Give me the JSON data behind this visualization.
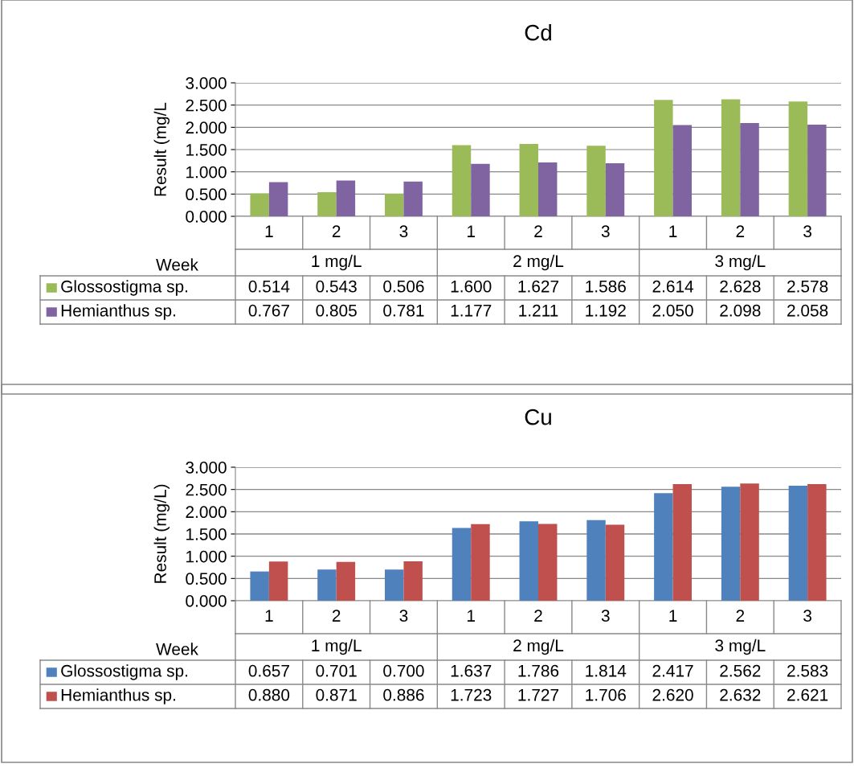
{
  "chart_data": [
    {
      "type": "bar",
      "title": "Cd",
      "ylabel": "Result (mg/L",
      "xlabel": "Week",
      "categories": [
        "1",
        "2",
        "3",
        "1",
        "2",
        "3",
        "1",
        "2",
        "3"
      ],
      "annotations": [
        "1 mg/L",
        "2 mg/L",
        "3 mg/L"
      ],
      "series": [
        {
          "name": "Glossostigma sp.",
          "color": "#9bbb59",
          "values": [
            0.514,
            0.543,
            0.506,
            1.6,
            1.627,
            1.586,
            2.614,
            2.628,
            2.578
          ],
          "value_labels": [
            "0.514",
            "0.543",
            "0.506",
            "1.600",
            "1.627",
            "1.586",
            "2.614",
            "2.628",
            "2.578"
          ]
        },
        {
          "name": "Hemianthus sp.",
          "color": "#8064a2",
          "values": [
            0.767,
            0.805,
            0.781,
            1.177,
            1.211,
            1.192,
            2.05,
            2.098,
            2.058
          ],
          "value_labels": [
            "0.767",
            "0.805",
            "0.781",
            "1.177",
            "1.211",
            "1.192",
            "2.050",
            "2.098",
            "2.058"
          ]
        }
      ],
      "ylim": [
        0,
        3
      ],
      "yticks": [
        {
          "value": 0,
          "label": "0.000"
        },
        {
          "value": 0.5,
          "label": "0.500"
        },
        {
          "value": 1,
          "label": "1.000"
        },
        {
          "value": 1.5,
          "label": "1.500"
        },
        {
          "value": 2,
          "label": "2.000"
        },
        {
          "value": 2.5,
          "label": "2.500"
        },
        {
          "value": 3,
          "label": "3.000"
        }
      ],
      "grid": "y",
      "legend": "bottom left"
    },
    {
      "type": "bar",
      "title": "Cu",
      "ylabel": "Result (mg/L)",
      "xlabel": "Week",
      "categories": [
        "1",
        "2",
        "3",
        "1",
        "2",
        "3",
        "1",
        "2",
        "3"
      ],
      "annotations": [
        "1 mg/L",
        "2 mg/L",
        "3 mg/L"
      ],
      "series": [
        {
          "name": "Glossostigma sp.",
          "color": "#4f81bd",
          "values": [
            0.657,
            0.701,
            0.7,
            1.637,
            1.786,
            1.814,
            2.417,
            2.562,
            2.583
          ],
          "value_labels": [
            "0.657",
            "0.701",
            "0.700",
            "1.637",
            "1.786",
            "1.814",
            "2.417",
            "2.562",
            "2.583"
          ]
        },
        {
          "name": "Hemianthus sp.",
          "color": "#c0504d",
          "values": [
            0.88,
            0.871,
            0.886,
            1.723,
            1.727,
            1.706,
            2.62,
            2.632,
            2.621
          ],
          "value_labels": [
            "0.880",
            "0.871",
            "0.886",
            "1.723",
            "1.727",
            "1.706",
            "2.620",
            "2.632",
            "2.621"
          ]
        }
      ],
      "ylim": [
        0,
        3
      ],
      "yticks": [
        {
          "value": 0,
          "label": "0.000"
        },
        {
          "value": 0.5,
          "label": "0.500"
        },
        {
          "value": 1,
          "label": "1.000"
        },
        {
          "value": 1.5,
          "label": "1.500"
        },
        {
          "value": 2,
          "label": "2.000"
        },
        {
          "value": 2.5,
          "label": "2.500"
        },
        {
          "value": 3,
          "label": "3.000"
        }
      ],
      "grid": "y",
      "legend": "bottom left"
    }
  ]
}
